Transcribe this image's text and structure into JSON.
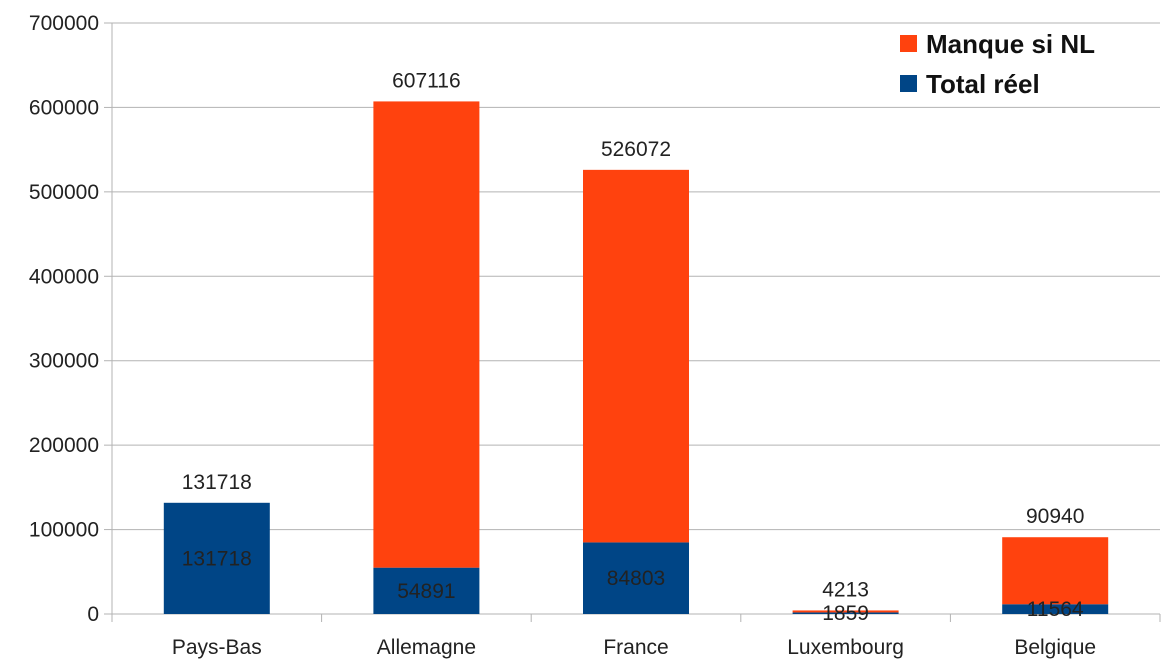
{
  "chart_data": {
    "type": "bar",
    "stacked": true,
    "categories": [
      "Pays-Bas",
      "Allemagne",
      "France",
      "Luxembourg",
      "Belgique"
    ],
    "series": [
      {
        "name": "Total réel",
        "color": "#004586",
        "values": [
          131718,
          54891,
          84803,
          1859,
          11564
        ],
        "labels": [
          "131718",
          "54891",
          "84803",
          "1859",
          "11564"
        ]
      },
      {
        "name": "Manque si NL",
        "color": "#ff420e",
        "values": [
          0,
          552225,
          441269,
          2354,
          79376
        ]
      }
    ],
    "totals": [
      131718,
      607116,
      526072,
      4213,
      90940
    ],
    "total_labels": [
      "131718",
      "607116",
      "526072",
      "4213",
      "90940"
    ],
    "ylim": [
      0,
      700000
    ],
    "yticks": [
      0,
      100000,
      200000,
      300000,
      400000,
      500000,
      600000,
      700000
    ],
    "ytick_labels": [
      "0",
      "100000",
      "200000",
      "300000",
      "400000",
      "500000",
      "600000",
      "700000"
    ],
    "grid": true,
    "legend_position": "top-right",
    "legend": [
      {
        "name": "Manque si NL",
        "color": "#ff420e"
      },
      {
        "name": "Total réel",
        "color": "#004586"
      }
    ],
    "title": "",
    "xlabel": "",
    "ylabel": ""
  }
}
